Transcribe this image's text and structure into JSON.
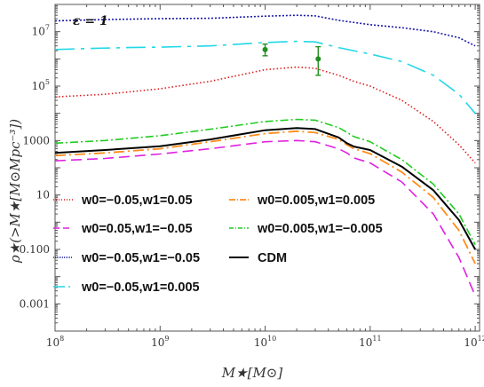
{
  "chart_data": {
    "type": "line",
    "annotation": "ε = 1",
    "xlabel": "M★[M⊙]",
    "ylabel": "ρ★(>M★[M⊙Mpc⁻³])",
    "x_scale": "log",
    "y_scale": "log",
    "xlim": [
      100000000.0,
      1100000000000.0
    ],
    "ylim": [
      0.0001,
      100000000.0
    ],
    "x_ticks": [
      {
        "base": "10",
        "exp": "8"
      },
      {
        "base": "10",
        "exp": "9"
      },
      {
        "base": "10",
        "exp": "10"
      },
      {
        "base": "10",
        "exp": "11"
      },
      {
        "base": "10",
        "exp": "12"
      }
    ],
    "y_ticks": [
      {
        "kind": "sci",
        "base": "10",
        "exp": "7",
        "value": 10000000.0
      },
      {
        "kind": "sci",
        "base": "10",
        "exp": "5",
        "value": 100000.0
      },
      {
        "kind": "plain",
        "text": "1000",
        "value": 1000
      },
      {
        "kind": "plain",
        "text": "10",
        "value": 10
      },
      {
        "kind": "plain",
        "text": "0.100",
        "value": 0.1
      },
      {
        "kind": "plain",
        "text": "0.001",
        "value": 0.001
      }
    ],
    "grid": false,
    "legend_position": "lower-left",
    "series": [
      {
        "name": "w0=−0.05,w1=0.05",
        "color": "#dd1c1c",
        "dash": "1.5 2.5",
        "width": 1.6,
        "x": [
          100000000.0,
          300000000.0,
          1000000000.0,
          3000000000.0,
          10000000000.0,
          20000000000.0,
          30000000000.0,
          50000000000.0,
          70000000000.0,
          100000000000.0,
          200000000000.0,
          400000000000.0,
          700000000000.0,
          1000000000000.0
        ],
        "y": [
          40000,
          50000,
          80000,
          150000,
          400000,
          500000,
          450000,
          250000,
          150000,
          100000,
          30000,
          5000,
          700,
          150
        ]
      },
      {
        "name": "w0=0.05,w1=−0.05",
        "color": "#e020e0",
        "dash": "12 6",
        "width": 1.6,
        "x": [
          100000000.0,
          300000000.0,
          1000000000.0,
          3000000000.0,
          10000000000.0,
          20000000000.0,
          30000000000.0,
          50000000000.0,
          60000000000.0,
          70000000000.0,
          100000000000.0,
          200000000000.0,
          400000000000.0,
          700000000000.0,
          1000000000000.0
        ],
        "y": [
          180,
          220,
          320,
          500,
          900,
          1000,
          900,
          500,
          350,
          230,
          150,
          30,
          2,
          0.05,
          0.002
        ]
      },
      {
        "name": "w0=−0.05,w1=−0.05",
        "color": "#1a1aa8",
        "dash": "2 2",
        "width": 1.6,
        "x": [
          100000000.0,
          300000000.0,
          1000000000.0,
          3000000000.0,
          10000000000.0,
          20000000000.0,
          30000000000.0,
          50000000000.0,
          100000000000.0,
          200000000000.0,
          400000000000.0,
          700000000000.0,
          1000000000000.0
        ],
        "y": [
          25000000,
          28000000,
          30000000,
          31000000,
          37000000,
          40000000,
          38000000,
          26000000,
          18000000,
          14000000,
          10000000,
          6000000,
          3000000
        ]
      },
      {
        "name": "w0=−0.05,w1=0.005",
        "color": "#22d8e6",
        "dash": "22 7 4 7",
        "width": 1.6,
        "x": [
          100000000.0,
          200000000.0,
          500000000.0,
          1000000000.0,
          3000000000.0,
          10000000000.0,
          20000000000.0,
          30000000000.0,
          50000000000.0,
          100000000000.0,
          200000000000.0,
          400000000000.0,
          700000000000.0,
          1000000000000.0
        ],
        "y": [
          2200000,
          2400000,
          2600000,
          2700000,
          3000000,
          4000000,
          4400000,
          4200000,
          2600000,
          1500000,
          800000,
          250000,
          50000,
          10000
        ]
      },
      {
        "name": "w0=0.005,w1=0.005",
        "color": "#ff8c1a",
        "dash": "12 4 2 4",
        "width": 1.8,
        "x": [
          100000000.0,
          300000000.0,
          1000000000.0,
          3000000000.0,
          10000000000.0,
          20000000000.0,
          30000000000.0,
          50000000000.0,
          60000000000.0,
          70000000000.0,
          100000000000.0,
          200000000000.0,
          400000000000.0,
          700000000000.0,
          1000000000000.0
        ],
        "y": [
          280,
          350,
          500,
          900,
          1800,
          2200,
          1950,
          1100,
          700,
          500,
          330,
          70,
          8,
          0.5,
          0.03
        ]
      },
      {
        "name": "w0=0.005,w1=−0.005",
        "color": "#22cc22",
        "dash": "9 3 2 3",
        "width": 1.6,
        "x": [
          100000000.0,
          300000000.0,
          1000000000.0,
          3000000000.0,
          10000000000.0,
          20000000000.0,
          30000000000.0,
          50000000000.0,
          60000000000.0,
          70000000000.0,
          100000000000.0,
          200000000000.0,
          400000000000.0,
          700000000000.0,
          1000000000000.0
        ],
        "y": [
          800,
          1000,
          1500,
          2600,
          5000,
          6000,
          5600,
          3000,
          2000,
          1400,
          900,
          200,
          25,
          2,
          0.15
        ]
      },
      {
        "name": "CDM",
        "color": "#000000",
        "dash": "",
        "width": 2,
        "x": [
          100000000.0,
          300000000.0,
          1000000000.0,
          3000000000.0,
          10000000000.0,
          20000000000.0,
          30000000000.0,
          50000000000.0,
          60000000000.0,
          70000000000.0,
          100000000000.0,
          200000000000.0,
          400000000000.0,
          700000000000.0,
          1000000000000.0
        ],
        "y": [
          350,
          450,
          620,
          1100,
          2400,
          2900,
          2650,
          1300,
          800,
          600,
          450,
          110,
          15,
          1.2,
          0.1
        ]
      }
    ],
    "data_points": [
      {
        "x": 10000000000.0,
        "y": 2200000,
        "y_low": 1300000,
        "y_high": 3500000,
        "color": "#1f8f1f"
      },
      {
        "x": 32000000000.0,
        "y": 1000000,
        "y_low": 250000,
        "y_high": 2800000,
        "color": "#1f8f1f"
      }
    ],
    "legend_layout": [
      {
        "series": 0,
        "col": 0,
        "row": 0
      },
      {
        "series": 1,
        "col": 0,
        "row": 1
      },
      {
        "series": 2,
        "col": 0,
        "row": 2
      },
      {
        "series": 3,
        "col": 0,
        "row": 3
      },
      {
        "series": 4,
        "col": 1,
        "row": 0
      },
      {
        "series": 5,
        "col": 1,
        "row": 1
      },
      {
        "series": 6,
        "col": 1,
        "row": 2
      }
    ]
  }
}
